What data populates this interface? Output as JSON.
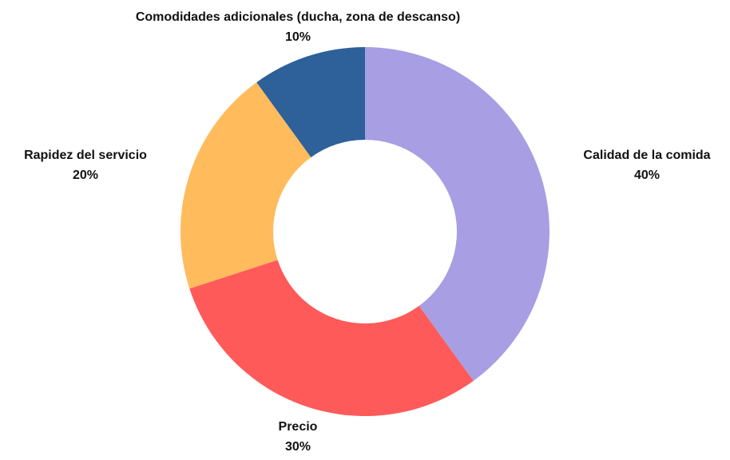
{
  "chart_data": {
    "type": "donut",
    "categories": [
      "Calidad de la comida",
      "Precio",
      "Rapidez del servicio",
      "Comodidades adicionales (ducha, zona de descanso)"
    ],
    "values": [
      40,
      30,
      20,
      10
    ],
    "value_labels": [
      "40%",
      "30%",
      "20%",
      "10%"
    ],
    "colors": [
      "#a89ee3",
      "#ff5a5a",
      "#ffbb5c",
      "#2e6099"
    ]
  }
}
